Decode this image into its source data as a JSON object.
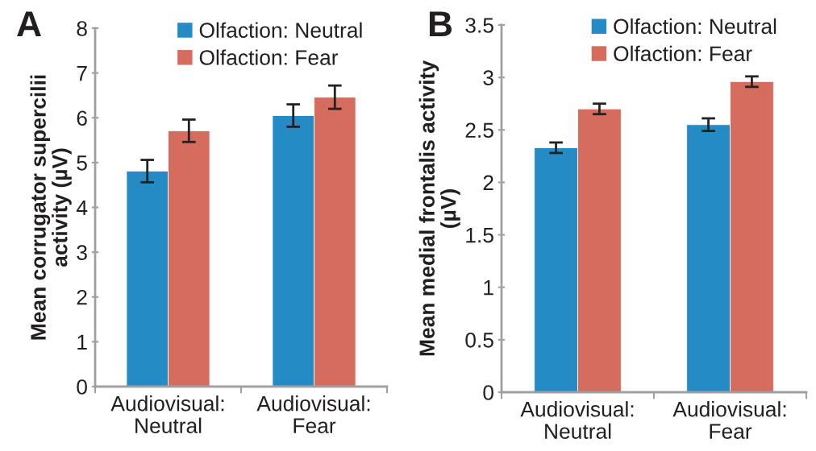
{
  "chart_data": [
    {
      "type": "bar",
      "annotations": [
        "A"
      ],
      "ylabel": "Mean corrugator supercilii\nactivity (µV)",
      "categories": [
        "Audiovisual:\nNeutral",
        "Audiovisual:\nFear"
      ],
      "ylim": [
        0,
        8
      ],
      "yticks": [
        0,
        1,
        2,
        3,
        4,
        5,
        6,
        7,
        8
      ],
      "legend": "top",
      "grid": false,
      "series": [
        {
          "name": "Olfaction: Neutral",
          "color": "#248bc5",
          "values": [
            4.81,
            6.05
          ],
          "errors": [
            0.25,
            0.25
          ]
        },
        {
          "name": "Olfaction: Fear",
          "color": "#d56c5e",
          "values": [
            5.71,
            6.46
          ],
          "errors": [
            0.25,
            0.26
          ]
        }
      ]
    },
    {
      "type": "bar",
      "annotations": [
        "B"
      ],
      "ylabel": "Mean medial frontalis activity\n(µV)",
      "categories": [
        "Audiovisual:\nNeutral",
        "Audiovisual:\nFear"
      ],
      "ylim": [
        0,
        3.5
      ],
      "yticks": [
        0,
        0.5,
        1,
        1.5,
        2,
        2.5,
        3,
        3.5
      ],
      "legend": "top",
      "grid": false,
      "series": [
        {
          "name": "Olfaction: Neutral",
          "color": "#248bc5",
          "values": [
            2.33,
            2.55
          ],
          "errors": [
            0.05,
            0.06
          ]
        },
        {
          "name": "Olfaction: Fear",
          "color": "#d56c5e",
          "values": [
            2.7,
            2.96
          ],
          "errors": [
            0.05,
            0.05
          ]
        }
      ]
    }
  ]
}
